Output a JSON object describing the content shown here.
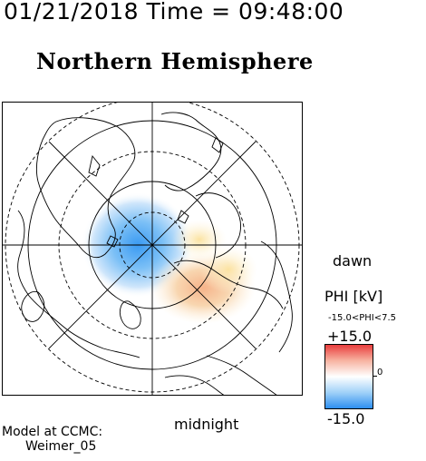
{
  "header": {
    "datetime": "01/21/2018 Time = 09:48:00",
    "hemisphere": "Northern Hemisphere"
  },
  "plot": {
    "label_dawn": "dawn",
    "label_midnight": "midnight",
    "projection": "polar",
    "grid_style": "solid-and-dashed-latitude-circles-with-radial-spokes"
  },
  "colorbar": {
    "title": "PHI [kV]",
    "range_text": "-15.0<PHI<7.5",
    "max_label": "+15.0",
    "min_label": "-15.0",
    "zero_label": "0",
    "colors": {
      "max": "#e83a3a",
      "mid": "#ffffff",
      "min": "#2a8df0"
    }
  },
  "credit": {
    "line1": "Model at CCMC:",
    "line2": "Weimer_05"
  }
}
